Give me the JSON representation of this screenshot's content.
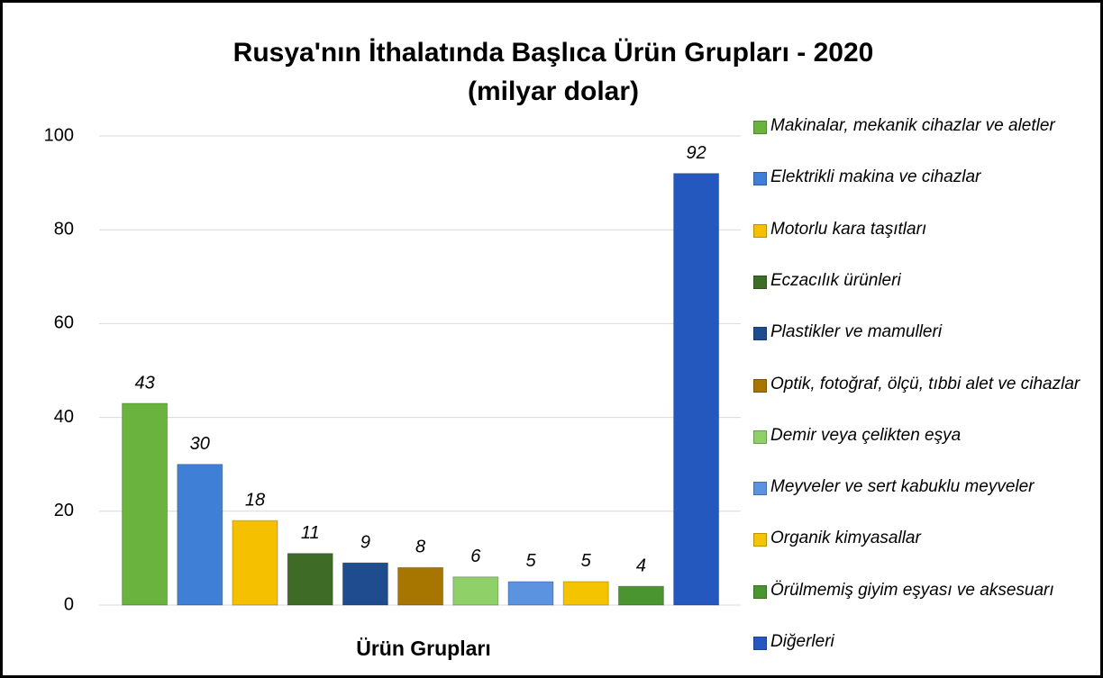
{
  "chart_data": {
    "type": "bar",
    "title": "Rusya'nın İthalatında Başlıca Ürün Grupları - 2020",
    "subtitle": "(milyar dolar)",
    "x_label": "Ürün Grupları",
    "categories": [
      "Makinalar, mekanik cihazlar ve aletler",
      "Elektrikli makina ve cihazlar",
      "Motorlu kara taşıtları",
      "Eczacılık ürünleri",
      "Plastikler ve mamulleri",
      "Optik, fotoğraf, ölçü, tıbbi alet ve cihazlar",
      "Demir veya çelikten eşya",
      "Meyveler ve sert kabuklu meyveler",
      "Organik kimyasallar",
      "Örülmemiş giyim eşyası ve aksesuarı",
      "Diğerleri"
    ],
    "values": [
      43,
      30,
      18,
      11,
      9,
      8,
      6,
      5,
      5,
      4,
      92
    ],
    "colors": [
      "#6ab33e",
      "#3f7fd6",
      "#f5c000",
      "#3e6b25",
      "#1f4b8f",
      "#a77600",
      "#8fd068",
      "#5b93e0",
      "#f5c400",
      "#4a9530",
      "#2458bf"
    ],
    "ylim": [
      0,
      100
    ],
    "yticks": [
      0,
      20,
      40,
      60,
      80,
      100
    ],
    "grid": true,
    "legend": "right"
  }
}
